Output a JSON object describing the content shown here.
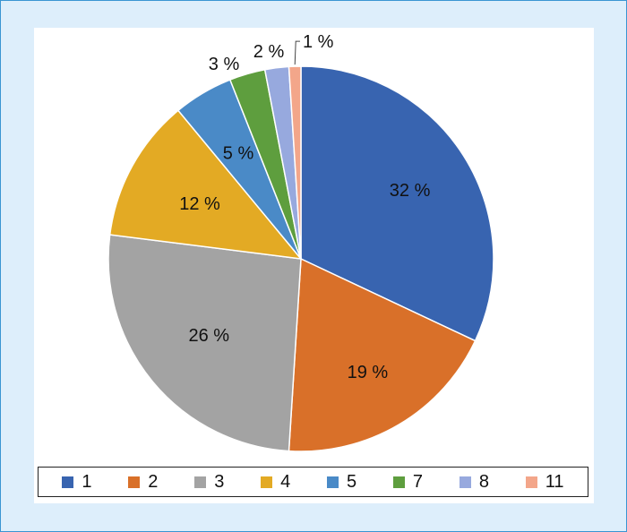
{
  "chart_data": {
    "type": "pie",
    "title": "",
    "categories": [
      "1",
      "2",
      "3",
      "4",
      "5",
      "7",
      "8",
      "11"
    ],
    "values": [
      32,
      19,
      26,
      12,
      5,
      3,
      2,
      1
    ],
    "labels": [
      "32 %",
      "19 %",
      "26 %",
      "12 %",
      "5 %",
      "3 %",
      "2 %",
      "1 %"
    ],
    "colors": [
      "#3864b0",
      "#d97029",
      "#a3a3a3",
      "#e3aa24",
      "#4a8ac7",
      "#5e9e3e",
      "#97a9de",
      "#f3a68a"
    ],
    "legend_position": "bottom",
    "start_angle_deg": 0,
    "direction": "clockwise"
  }
}
